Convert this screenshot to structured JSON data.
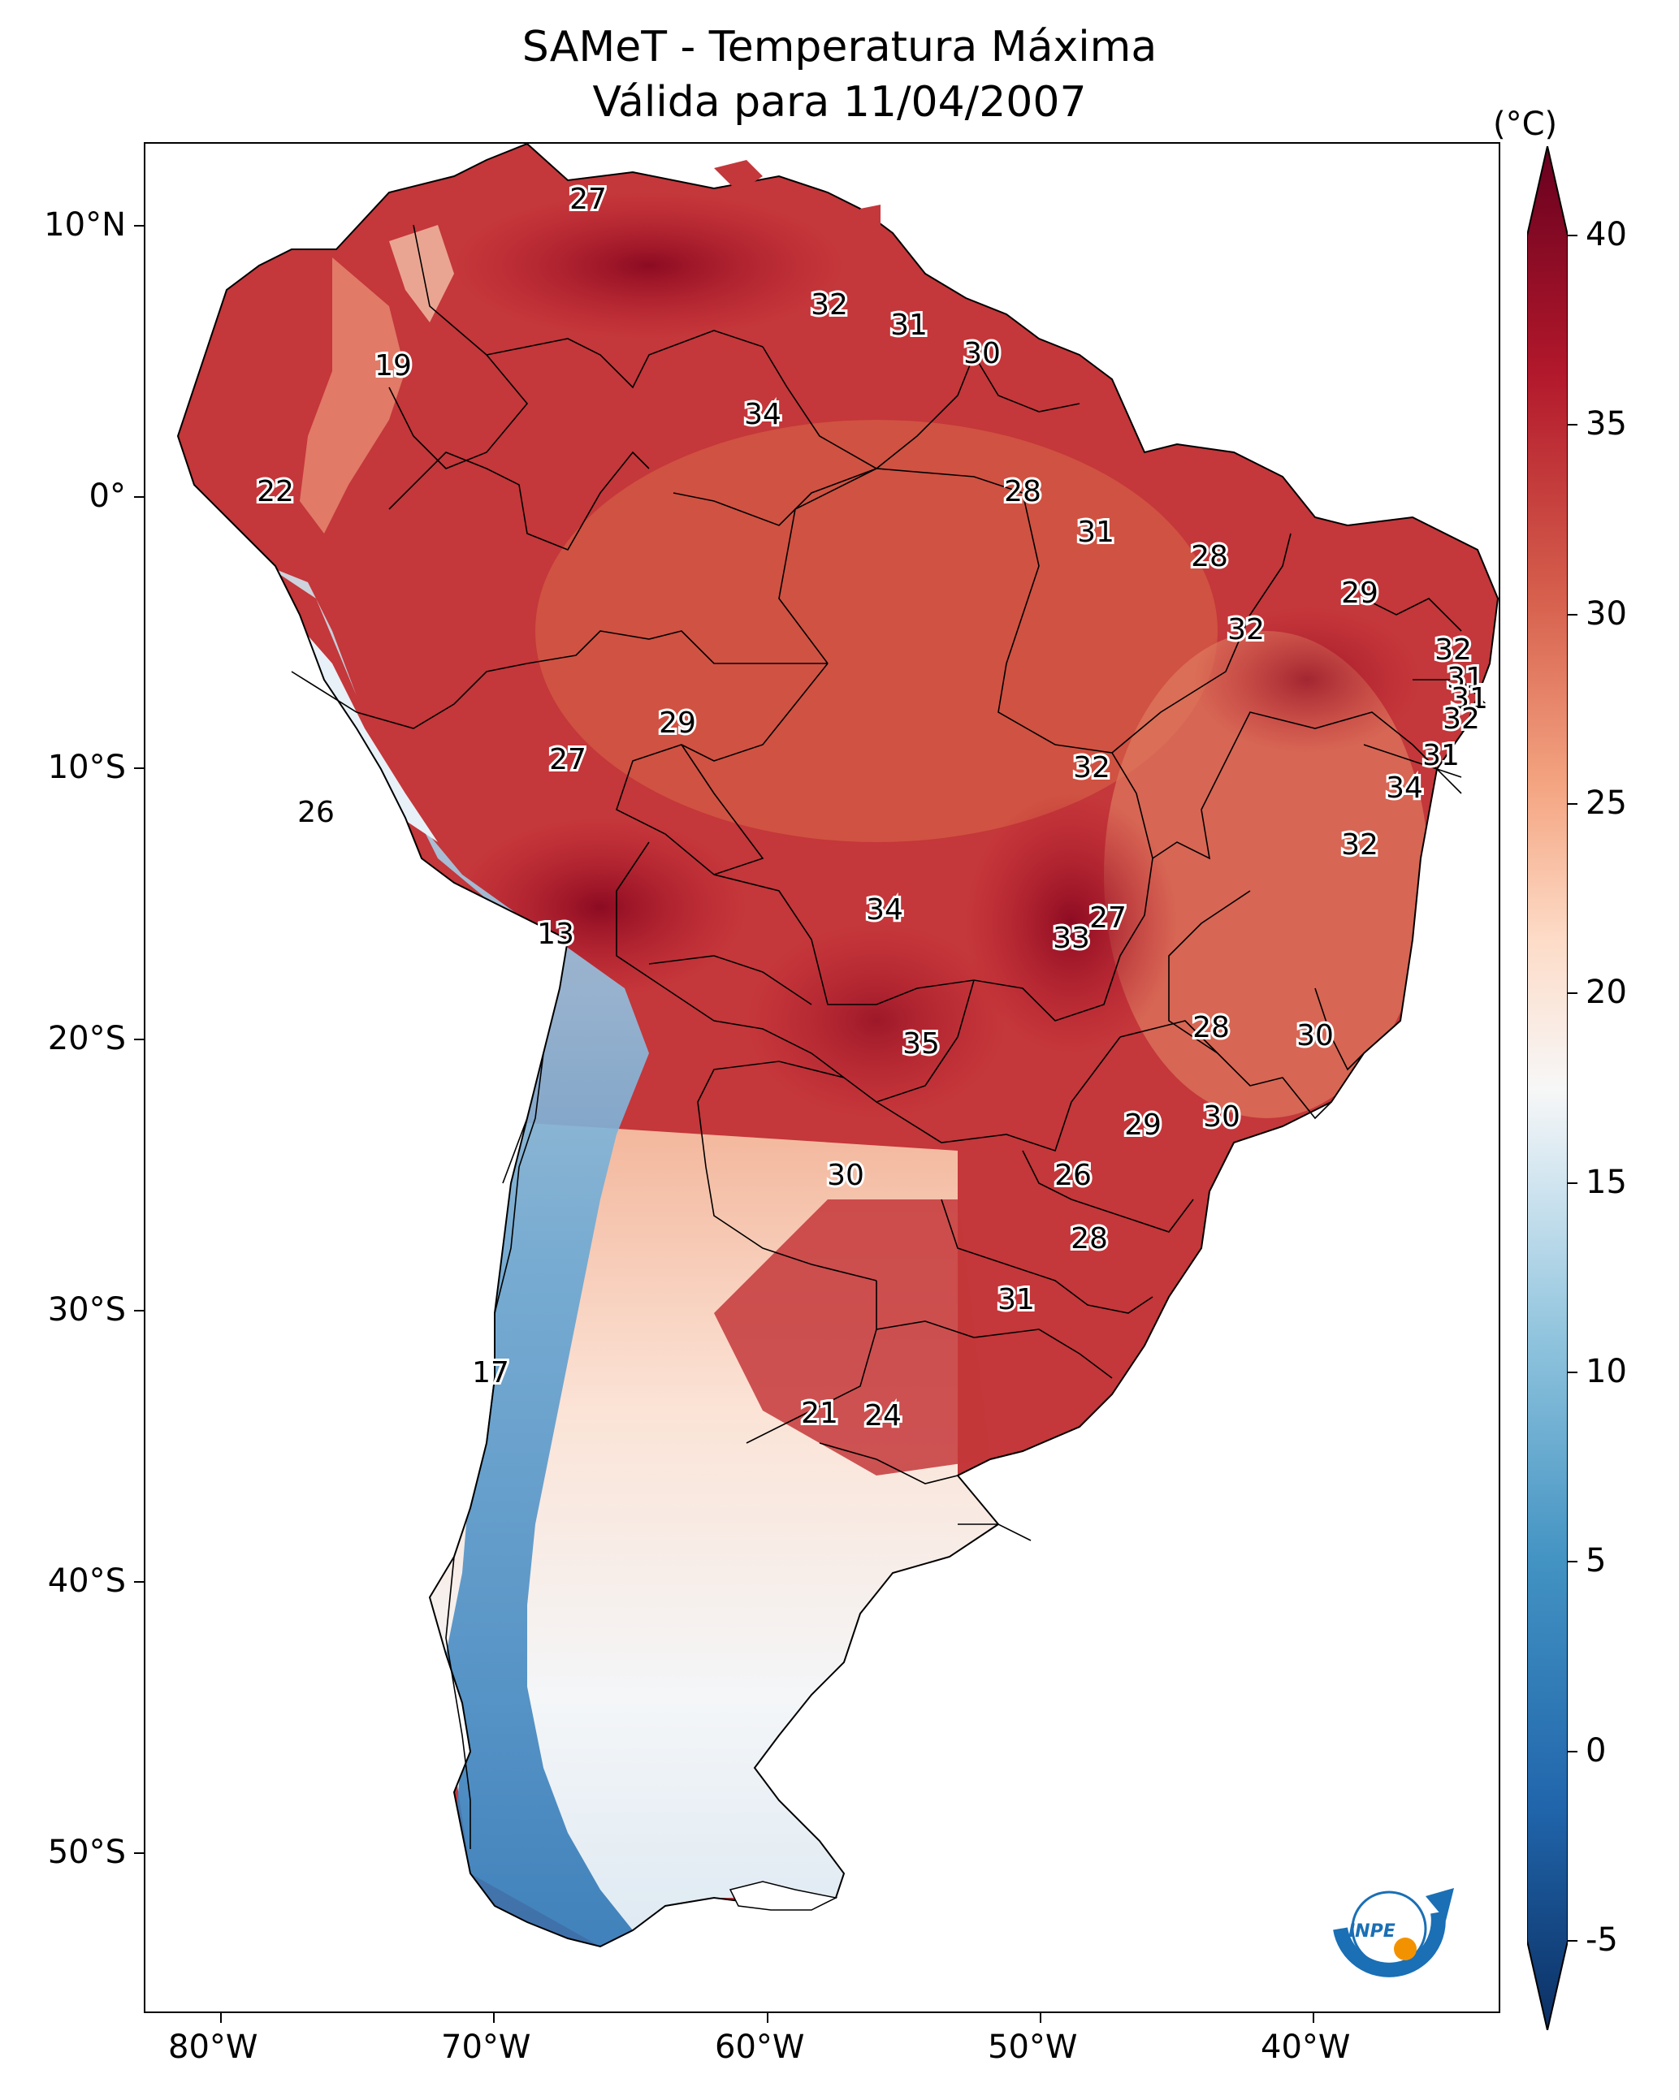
{
  "title": "SAMeT - Temperatura Máxima",
  "subtitle": "Válida para 11/04/2007",
  "colorbar": {
    "unit": "(°C)",
    "ticks": [
      "40",
      "35",
      "30",
      "25",
      "20",
      "15",
      "10",
      "5",
      "0",
      "-5"
    ],
    "min": -5,
    "max": 40,
    "colors": [
      "#0b2f63",
      "#2166ac",
      "#4393c3",
      "#92c5de",
      "#d1e5f0",
      "#f7f7f7",
      "#fddbc7",
      "#f4a582",
      "#d6604d",
      "#b2182b",
      "#67001f"
    ]
  },
  "axes": {
    "lon_ticks": [
      "80°W",
      "70°W",
      "60°W",
      "50°W",
      "40°W"
    ],
    "lat_ticks": [
      "10°N",
      "0°",
      "10°S",
      "20°S",
      "30°S",
      "40°S",
      "50°S"
    ]
  },
  "contour_labels": [
    "27",
    "32",
    "31",
    "30",
    "19",
    "34",
    "22",
    "28",
    "31",
    "28",
    "29",
    "32",
    "32",
    "31",
    "31",
    "32",
    "29",
    "27",
    "32",
    "31",
    "34",
    "26",
    "32",
    "27",
    "13",
    "34",
    "33",
    "28",
    "30",
    "35",
    "30",
    "29",
    "30",
    "26",
    "28",
    "31",
    "17",
    "21",
    "24"
  ],
  "logo": {
    "text": "INPE",
    "icon": "inpe-logo-icon",
    "accent": "#1a6fb5",
    "dot": "#f39200"
  }
}
